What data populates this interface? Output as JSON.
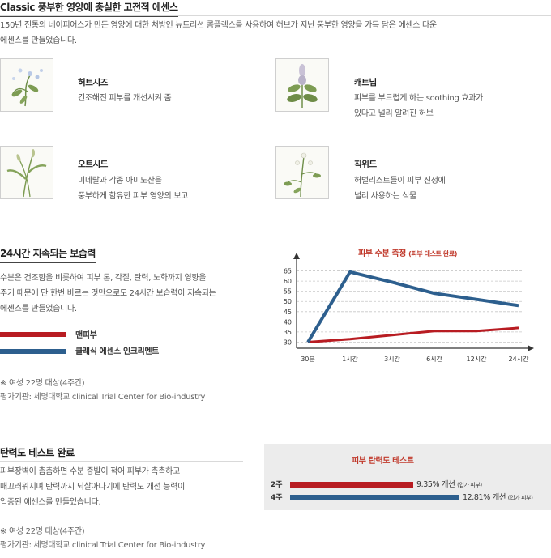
{
  "classic": {
    "title": "Classic 풍부한 영양에 충실한 고전적 에센스",
    "desc_line1": "150년 전통의 네이피어스가 만든 영양에 대한 처방인 뉴트리션 콤플렉스를 사용하여 허브가 지닌 풍부한 영양을 가득 담은 에센스 다운",
    "desc_line2": "에센스를 만들었습니다."
  },
  "herbs": [
    {
      "name": "허트시즈",
      "desc1": "건조해진 피부를 개선시켜 줌",
      "desc2": ""
    },
    {
      "name": "캐트닙",
      "desc1": "피부를 부드럽게 하는 soothing 효과가",
      "desc2": "있다고 널리 알려진 허브"
    },
    {
      "name": "오트시드",
      "desc1": "미네랄과 각종 아미노산을",
      "desc2": "풍부하게  함유한 피부 영양의 보고"
    },
    {
      "name": "칙위드",
      "desc1": "허벌리스트들이 피부 진정에",
      "desc2": "널리 사용하는 식물"
    }
  ],
  "moisture": {
    "title": "24시간 지속되는 보습력",
    "desc_line1": "수분은 건조함을 비롯하여 피부 톤, 각질, 탄력, 노화까지 영향을",
    "desc_line2": "주기 때문에 단 한번 바르는 것만으로도 24시간 보습력이 지속되는",
    "desc_line3": "에센스를 만들었습니다.",
    "legend_bare": "맨피부",
    "legend_essence": "클래식 에센스 인크리멘트",
    "note1": "※ 여성 22명 대상(4주간)",
    "note2": "평가기관: 세명대학교 clinical Trial Center for Bio-industry"
  },
  "chart_data": {
    "type": "line",
    "title": "피부 수분 측정",
    "title_sub": "(피부 테스트 완료)",
    "categories": [
      "30분",
      "1시간",
      "3시간",
      "6시간",
      "12시간",
      "24시간"
    ],
    "yticks": [
      30,
      35,
      40,
      45,
      50,
      55,
      60,
      65
    ],
    "ylim": [
      27,
      70
    ],
    "grid": true,
    "series": [
      {
        "name": "맨피부",
        "color": "#b81c22",
        "values": [
          30,
          31.5,
          33.5,
          35.5,
          35.5,
          37
        ]
      },
      {
        "name": "클래식 에센스 인크리멘트",
        "color": "#2d5f8e",
        "values": [
          30,
          64.5,
          59.5,
          54,
          51,
          48
        ]
      }
    ]
  },
  "elasticity": {
    "title": "탄력도 테스트 완료",
    "desc_line1": "피부장벽이 촘촘하면 수분 증발이 적어 피부가 촉촉하고",
    "desc_line2": "매끄러워지며 탄력까지 되살아나기에 탄력도 개선 능력이",
    "desc_line3": "입증된 에센스를 만들었습니다.",
    "note1": "※ 여성 22명 대상(4주간)",
    "note2": "평가기관: 세명대학교 clinical Trial Center for Bio-industry",
    "panel_title": "피부 탄력도 테스트",
    "rows": [
      {
        "label": "2주",
        "value_pct": 9.35,
        "text": "9.35% 개선",
        "sub": "(입가 피부)",
        "color": "#b81c22"
      },
      {
        "label": "4주",
        "value_pct": 12.81,
        "text": "12.81% 개선",
        "sub": "(입가 피부)",
        "color": "#2d5f8e"
      }
    ]
  }
}
